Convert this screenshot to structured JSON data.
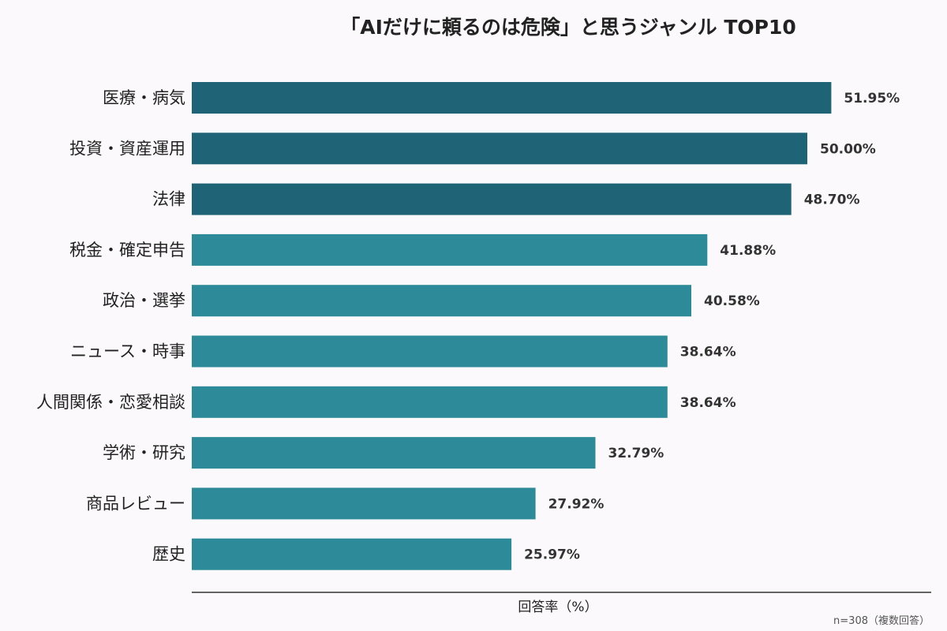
{
  "chart_data": {
    "type": "bar",
    "orientation": "horizontal",
    "title": "「AIだけに頼るのは危険」と思うジャンル TOP10",
    "xlabel": "回答率（%）",
    "note": "n=308（複数回答）",
    "categories": [
      "医療・病気",
      "投資・資産運用",
      "法律",
      "税金・確定申告",
      "政治・選挙",
      "ニュース・時事",
      "人間関係・恋愛相談",
      "学術・研究",
      "商品レビュー",
      "歴史"
    ],
    "values": [
      51.95,
      50.0,
      48.7,
      41.88,
      40.58,
      38.64,
      38.64,
      32.79,
      27.92,
      25.97
    ],
    "value_labels": [
      "51.95%",
      "50.00%",
      "48.70%",
      "41.88%",
      "40.58%",
      "38.64%",
      "38.64%",
      "32.79%",
      "27.92%",
      "25.97%"
    ],
    "highlight_count": 3,
    "colors": {
      "highlight": "#1f6476",
      "normal": "#2d8b99"
    },
    "xlim": [
      0,
      60
    ],
    "grid": false
  }
}
